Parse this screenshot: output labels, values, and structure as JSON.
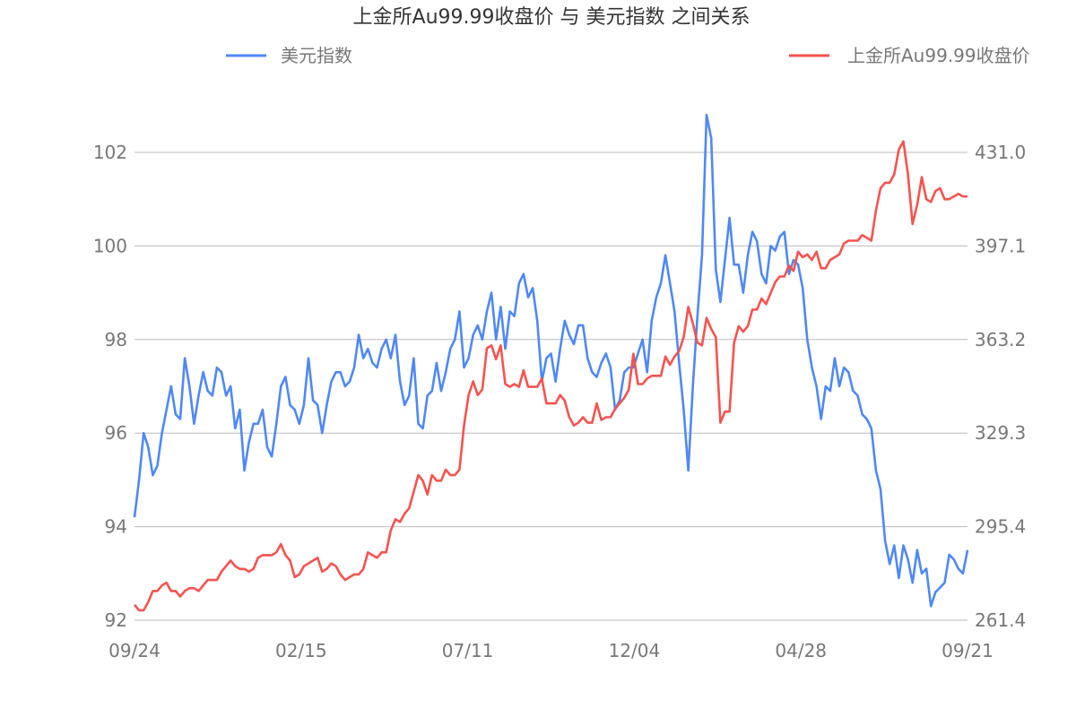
{
  "chart_data": {
    "type": "line",
    "title": "上金所Au99.99收盘价 与 美元指数 之间关系",
    "legend_placement": "top",
    "grid": true,
    "x_tick_labels": [
      "09/24",
      "02/15",
      "07/11",
      "12/04",
      "04/28",
      "09/21"
    ],
    "y_left": {
      "range": [
        92,
        102
      ],
      "ticks": [
        "92",
        "94",
        "96",
        "98",
        "100",
        "102"
      ]
    },
    "y_right": {
      "range": [
        261.4,
        431.0
      ],
      "ticks": [
        "261.4",
        "295.4",
        "329.3",
        "363.2",
        "397.1",
        "431.0"
      ]
    },
    "series": [
      {
        "name": "美元指数",
        "axis": "left",
        "color": "#4f88f6",
        "values": [
          94.2,
          95.0,
          96.0,
          95.7,
          95.1,
          95.3,
          96.0,
          96.5,
          97.0,
          96.4,
          96.3,
          97.6,
          97.0,
          96.2,
          96.8,
          97.3,
          96.9,
          96.8,
          97.4,
          97.3,
          96.8,
          97.0,
          96.1,
          96.5,
          95.2,
          95.8,
          96.2,
          96.2,
          96.5,
          95.7,
          95.5,
          96.2,
          97.0,
          97.2,
          96.6,
          96.5,
          96.2,
          96.6,
          97.6,
          96.7,
          96.6,
          96.0,
          96.6,
          97.1,
          97.3,
          97.3,
          97.0,
          97.1,
          97.4,
          98.1,
          97.6,
          97.8,
          97.5,
          97.4,
          97.8,
          98.0,
          97.6,
          98.1,
          97.1,
          96.6,
          96.8,
          97.6,
          96.2,
          96.1,
          96.8,
          96.9,
          97.5,
          96.9,
          97.3,
          97.8,
          98.0,
          98.6,
          97.4,
          97.6,
          98.1,
          98.3,
          98.0,
          98.6,
          99.0,
          98.0,
          98.7,
          97.8,
          98.6,
          98.5,
          99.2,
          99.4,
          98.9,
          99.1,
          98.4,
          97.1,
          97.6,
          97.7,
          97.1,
          97.8,
          98.4,
          98.1,
          97.9,
          98.3,
          98.3,
          97.6,
          97.3,
          97.2,
          97.5,
          97.7,
          97.4,
          96.5,
          96.7,
          97.3,
          97.4,
          97.4,
          97.7,
          98.0,
          97.3,
          98.4,
          98.9,
          99.2,
          99.8,
          99.2,
          98.6,
          97.5,
          96.5,
          95.2,
          97.0,
          98.5,
          99.8,
          102.8,
          102.3,
          99.5,
          98.8,
          99.7,
          100.6,
          99.6,
          99.6,
          99.0,
          99.8,
          100.3,
          100.1,
          99.4,
          99.2,
          100.0,
          99.9,
          100.2,
          100.3,
          99.4,
          99.7,
          99.6,
          99.1,
          98.0,
          97.4,
          97.0,
          96.3,
          97.0,
          96.9,
          97.6,
          97.0,
          97.4,
          97.3,
          96.9,
          96.8,
          96.4,
          96.3,
          96.1,
          95.2,
          94.8,
          93.7,
          93.2,
          93.6,
          92.9,
          93.6,
          93.3,
          92.8,
          93.5,
          93.0,
          93.1,
          92.3,
          92.6,
          92.7,
          92.8,
          93.4,
          93.3,
          93.1,
          93.0,
          93.5
        ]
      },
      {
        "name": "上金所Au99.99收盘价",
        "axis": "right",
        "color": "#f5534f",
        "values": [
          267,
          265,
          265,
          268,
          272,
          272,
          274,
          275,
          272,
          272,
          270,
          272,
          273,
          273,
          272,
          274,
          276,
          276,
          276,
          279,
          281,
          283,
          281,
          280,
          280,
          279,
          280,
          284,
          285,
          285,
          285,
          286,
          289,
          285,
          283,
          277,
          278,
          281,
          282,
          283,
          284,
          279,
          280,
          282,
          281,
          278,
          276,
          277,
          278,
          278,
          280,
          286,
          285,
          284,
          286,
          286,
          294,
          298,
          297,
          300,
          302,
          308,
          314,
          312,
          307,
          314,
          312,
          312,
          316,
          314,
          314,
          316,
          332,
          343,
          348,
          343,
          345,
          360,
          361,
          356,
          361,
          347,
          346,
          347,
          346,
          352,
          346,
          346,
          346,
          349,
          340,
          340,
          340,
          343,
          341,
          335,
          332,
          333,
          335,
          333,
          333,
          340,
          334,
          335,
          335,
          338,
          340,
          342,
          345,
          358,
          347,
          347,
          349,
          350,
          350,
          350,
          357,
          354,
          357,
          359,
          364,
          375,
          369,
          362,
          361,
          371,
          367,
          364,
          333,
          337,
          337,
          362,
          368,
          366,
          368,
          374,
          374,
          378,
          376,
          380,
          384,
          386,
          386,
          390,
          388,
          395,
          393,
          394,
          392,
          395,
          389,
          389,
          392,
          393,
          394,
          398,
          399,
          399,
          399,
          401,
          400,
          399,
          410,
          418,
          420,
          420,
          423,
          432,
          435,
          423,
          405,
          412,
          422,
          414,
          413,
          417,
          418,
          414,
          414,
          415,
          416,
          415,
          415
        ]
      }
    ]
  }
}
